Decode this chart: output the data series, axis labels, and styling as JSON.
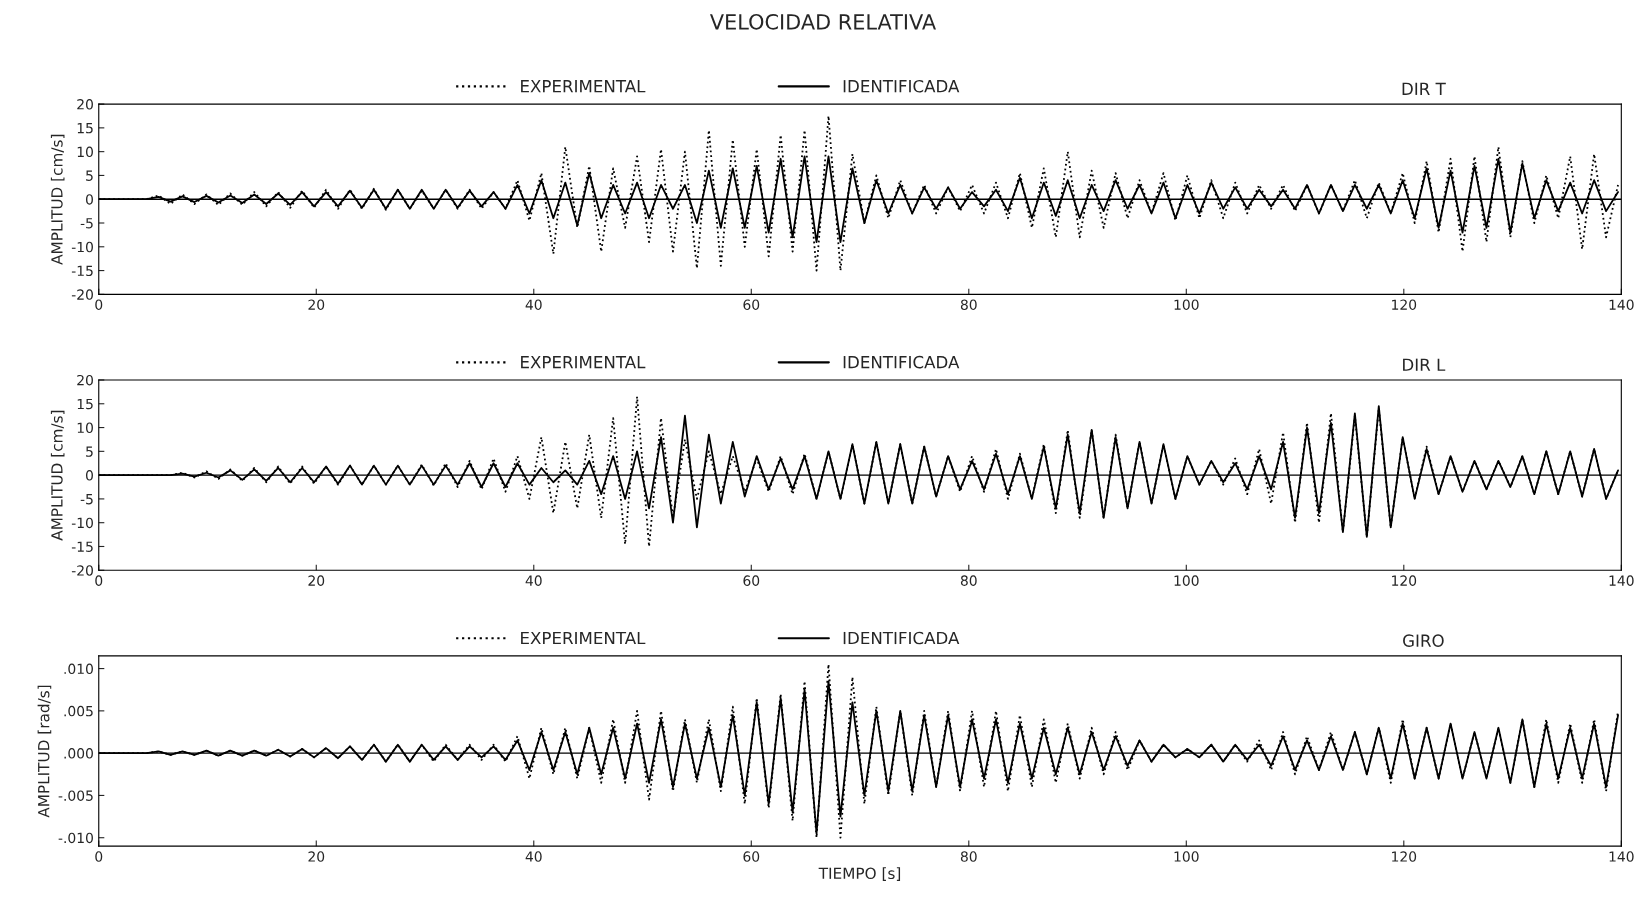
{
  "chart_data": [
    {
      "type": "line",
      "title": "VELOCIDAD RELATIVA",
      "subtitle": "DIR T",
      "ylabel": "AMPLITUD [cm/s]",
      "legend": "top",
      "xlim": [
        0,
        140
      ],
      "xticks": [
        0,
        20,
        40,
        60,
        80,
        100,
        120,
        140
      ],
      "ylim": [
        -20,
        20
      ],
      "yticks": [
        -20,
        -15,
        -10,
        -5,
        0,
        5,
        10,
        15,
        20
      ],
      "ref_lines": [
        {
          "axis": "y",
          "value": 0,
          "color": "#000000",
          "line_style": "solid"
        }
      ],
      "x": [
        0,
        1.1,
        2.2,
        3.3,
        4.4,
        5.5,
        6.6,
        7.7,
        8.8,
        9.9,
        11,
        12.1,
        13.2,
        14.3,
        15.4,
        16.5,
        17.6,
        18.7,
        19.8,
        20.9,
        22,
        23.1,
        24.2,
        25.3,
        26.4,
        27.5,
        28.6,
        29.7,
        30.8,
        31.9,
        33,
        34.1,
        35.2,
        36.3,
        37.4,
        38.5,
        39.6,
        40.7,
        41.8,
        42.9,
        44,
        45.1,
        46.2,
        47.3,
        48.4,
        49.5,
        50.6,
        51.7,
        52.8,
        53.9,
        55,
        56.1,
        57.2,
        58.3,
        59.4,
        60.5,
        61.6,
        62.7,
        63.8,
        64.9,
        66,
        67.1,
        68.2,
        69.3,
        70.4,
        71.5,
        72.6,
        73.7,
        74.8,
        75.9,
        77,
        78.1,
        79.2,
        80.3,
        81.4,
        82.5,
        83.6,
        84.7,
        85.8,
        86.9,
        88,
        89.1,
        90.2,
        91.3,
        92.4,
        93.5,
        94.6,
        95.7,
        96.8,
        97.9,
        99,
        100.1,
        101.2,
        102.3,
        103.4,
        104.5,
        105.6,
        106.7,
        107.8,
        108.9,
        110,
        111.1,
        112.2,
        113.3,
        114.4,
        115.5,
        116.6,
        117.7,
        118.8,
        119.9,
        121,
        122.1,
        123.2,
        124.3,
        125.4,
        126.5,
        127.6,
        128.7,
        129.8,
        130.9,
        132,
        133.1,
        134.2,
        135.3,
        136.4,
        137.5,
        138.6,
        139.7
      ],
      "series": [
        {
          "name": "EXPERIMENTAL",
          "color": "#000000",
          "line_style": "dotted",
          "values": [
            0,
            0,
            0,
            0,
            0,
            0.8,
            -1,
            1,
            -1,
            1,
            -1.2,
            1.2,
            -1.2,
            1.5,
            -1.5,
            1.5,
            -1.8,
            1.8,
            -1.8,
            2,
            -2,
            2,
            -2,
            2.2,
            -2.2,
            2,
            -2,
            1.8,
            -2,
            2,
            -2,
            2,
            -2,
            1.5,
            -2,
            4,
            -4.5,
            5.5,
            -11.5,
            11,
            -6,
            7,
            -11,
            6.5,
            -6,
            9,
            -9,
            10.5,
            -11,
            10,
            -14.5,
            14.5,
            -14,
            12.5,
            -10,
            10.5,
            -12,
            13.5,
            -11,
            14.5,
            -15,
            17.5,
            -15,
            9.5,
            -5,
            5,
            -4,
            4,
            -3,
            3,
            -3,
            2.5,
            -2.5,
            3,
            -3,
            3.5,
            -4,
            5.5,
            -6,
            6.5,
            -8,
            10,
            -8,
            6,
            -6,
            5.5,
            -4,
            4,
            -3,
            5.5,
            -4.5,
            5,
            -4,
            4,
            -4,
            3.5,
            -3,
            3,
            -2,
            3,
            -2.5,
            3,
            -3,
            3,
            -2.5,
            4,
            -4,
            3.5,
            -3,
            5.5,
            -5,
            8,
            -7,
            8.5,
            -11,
            9,
            -9,
            11,
            -8,
            8,
            -5,
            5,
            -4,
            9,
            -10.5,
            9.5,
            -8,
            3
          ]
        },
        {
          "name": "IDENTIFICADA",
          "color": "#000000",
          "line_style": "solid",
          "values": [
            0,
            0,
            0,
            0,
            0,
            0.5,
            -0.5,
            0.6,
            -0.6,
            0.7,
            -0.7,
            0.8,
            -0.8,
            1,
            -1,
            1.2,
            -1.2,
            1.5,
            -1.5,
            1.5,
            -1.5,
            1.8,
            -1.8,
            2,
            -2,
            2,
            -2,
            2,
            -2,
            2,
            -1.8,
            1.8,
            -1.5,
            1.5,
            -2,
            3,
            -3,
            4,
            -4,
            3.5,
            -5.5,
            5.5,
            -4,
            3,
            -3,
            3.5,
            -4,
            3,
            -2,
            3,
            -5,
            6,
            -6,
            6.5,
            -6,
            7,
            -7,
            8.5,
            -8,
            9,
            -9,
            9,
            -9,
            6.5,
            -5,
            4,
            -3,
            3,
            -3,
            2.5,
            -2,
            2.5,
            -2,
            1.5,
            -1.5,
            2,
            -2.5,
            4.5,
            -4,
            3.5,
            -3.5,
            4,
            -4,
            3,
            -2.5,
            4,
            -2,
            3,
            -3,
            3.5,
            -4,
            3,
            -3,
            3.5,
            -2,
            2.5,
            -2,
            2,
            -1.5,
            2,
            -2,
            3,
            -3,
            3,
            -2.5,
            3,
            -2,
            3,
            -3,
            4,
            -4,
            6.5,
            -6,
            6,
            -7,
            7,
            -6,
            8.5,
            -7,
            7.5,
            -4,
            4,
            -2.5,
            3.5,
            -3,
            4,
            -2.5,
            1.5
          ]
        }
      ]
    },
    {
      "type": "line",
      "subtitle": "DIR L",
      "ylabel": "AMPLITUD [cm/s]",
      "legend": "top",
      "xlim": [
        0,
        140
      ],
      "xticks": [
        0,
        20,
        40,
        60,
        80,
        100,
        120,
        140
      ],
      "ylim": [
        -20,
        20
      ],
      "yticks": [
        -20,
        -15,
        -10,
        -5,
        0,
        5,
        10,
        15,
        20
      ],
      "ref_lines": [
        {
          "axis": "y",
          "value": 0,
          "color": "#000000",
          "line_style": "solid"
        }
      ],
      "x": [
        0,
        1.1,
        2.2,
        3.3,
        4.4,
        5.5,
        6.6,
        7.7,
        8.8,
        9.9,
        11,
        12.1,
        13.2,
        14.3,
        15.4,
        16.5,
        17.6,
        18.7,
        19.8,
        20.9,
        22,
        23.1,
        24.2,
        25.3,
        26.4,
        27.5,
        28.6,
        29.7,
        30.8,
        31.9,
        33,
        34.1,
        35.2,
        36.3,
        37.4,
        38.5,
        39.6,
        40.7,
        41.8,
        42.9,
        44,
        45.1,
        46.2,
        47.3,
        48.4,
        49.5,
        50.6,
        51.7,
        52.8,
        53.9,
        55,
        56.1,
        57.2,
        58.3,
        59.4,
        60.5,
        61.6,
        62.7,
        63.8,
        64.9,
        66,
        67.1,
        68.2,
        69.3,
        70.4,
        71.5,
        72.6,
        73.7,
        74.8,
        75.9,
        77,
        78.1,
        79.2,
        80.3,
        81.4,
        82.5,
        83.6,
        84.7,
        85.8,
        86.9,
        88,
        89.1,
        90.2,
        91.3,
        92.4,
        93.5,
        94.6,
        95.7,
        96.8,
        97.9,
        99,
        100.1,
        101.2,
        102.3,
        103.4,
        104.5,
        105.6,
        106.7,
        107.8,
        108.9,
        110,
        111.1,
        112.2,
        113.3,
        114.4,
        115.5,
        116.6,
        117.7,
        118.8,
        119.9,
        121,
        122.1,
        123.2,
        124.3,
        125.4,
        126.5,
        127.6,
        128.7,
        129.8,
        130.9,
        132,
        133.1,
        134.2,
        135.3,
        136.4,
        137.5,
        138.6,
        139.7
      ],
      "series": [
        {
          "name": "EXPERIMENTAL",
          "color": "#000000",
          "line_style": "dotted",
          "values": [
            0,
            0,
            0,
            0,
            0,
            0,
            0,
            0.5,
            -0.5,
            0.8,
            -0.8,
            1.2,
            -1.2,
            1.5,
            -1.5,
            1.8,
            -1.8,
            1.8,
            -1.8,
            1.8,
            -2,
            2,
            -2,
            2,
            -2,
            2,
            -2,
            2.2,
            -2.2,
            2.5,
            -2.5,
            3,
            -3,
            3.5,
            -3.5,
            4,
            -5,
            8,
            -8,
            7,
            -7,
            8.5,
            -9,
            12,
            -14.5,
            16.5,
            -15,
            12,
            -9,
            7.5,
            -5,
            5,
            -4,
            4,
            -3.5,
            3.5,
            -3.5,
            4,
            -4,
            4.5,
            -5,
            5,
            -5,
            6.5,
            -6,
            7,
            -6,
            6.5,
            -6,
            6,
            -4.5,
            4,
            -3.5,
            4,
            -3.5,
            5.5,
            -5,
            4.5,
            -5,
            6.5,
            -8,
            9.5,
            -9,
            9.5,
            -9,
            8.5,
            -7,
            7,
            -6,
            6.5,
            -5,
            4,
            -2,
            3,
            -2,
            3.5,
            -4,
            5.5,
            -6,
            9,
            -10,
            11,
            -10,
            13,
            -12,
            12.5,
            -13,
            14,
            -11,
            8,
            -5,
            6,
            -4,
            4,
            -3.5,
            3,
            -3,
            3,
            -2.5,
            4,
            -4,
            5,
            -4,
            5,
            -4.5,
            5.5,
            -5,
            1
          ]
        },
        {
          "name": "IDENTIFICADA",
          "color": "#000000",
          "line_style": "solid",
          "values": [
            0,
            0,
            0,
            0,
            0,
            0,
            0,
            0.3,
            -0.3,
            0.5,
            -0.5,
            1,
            -1,
            1.2,
            -1.2,
            1.5,
            -1.5,
            1.5,
            -1.5,
            1.8,
            -1.8,
            2,
            -2,
            2,
            -2,
            2,
            -2,
            2,
            -2,
            2,
            -2,
            2.5,
            -2.5,
            2.5,
            -2.5,
            2.5,
            -2,
            1.5,
            -1.5,
            1,
            -2,
            3,
            -4,
            4,
            -5,
            5,
            -7,
            8,
            -10,
            12.5,
            -11,
            8.5,
            -6,
            7,
            -4.5,
            4,
            -3,
            3.5,
            -3,
            4,
            -5,
            5,
            -5,
            6.5,
            -6,
            7,
            -6,
            6.5,
            -6,
            6,
            -4.5,
            4,
            -3,
            3,
            -3,
            4.5,
            -4,
            4,
            -5,
            6,
            -7,
            8.5,
            -8,
            9.5,
            -9,
            8,
            -7,
            7,
            -6,
            6.5,
            -5,
            4,
            -2,
            3,
            -1.5,
            2.5,
            -3,
            4,
            -3,
            7,
            -9,
            10,
            -8,
            11,
            -12,
            13,
            -13,
            14.5,
            -11,
            8,
            -5,
            5.5,
            -4,
            4,
            -3.5,
            3,
            -3,
            3,
            -2.5,
            4,
            -4,
            5,
            -4,
            5,
            -4.5,
            5.5,
            -5,
            1
          ]
        }
      ]
    },
    {
      "type": "line",
      "subtitle": "GIRO",
      "xlabel": "TIEMPO [s]",
      "ylabel": "AMPLITUD [rad/s]",
      "legend": "top",
      "xlim": [
        0,
        140
      ],
      "xticks": [
        0,
        20,
        40,
        60,
        80,
        100,
        120,
        140
      ],
      "ylim": [
        -0.011,
        0.0115
      ],
      "yticks": [
        {
          "value": -0.01,
          "label": "-.010"
        },
        {
          "value": -0.005,
          "label": "-.005"
        },
        {
          "value": 0,
          "label": ".000"
        },
        {
          "value": 0.005,
          "label": ".005"
        },
        {
          "value": 0.01,
          "label": ".010"
        }
      ],
      "ref_lines": [
        {
          "axis": "y",
          "value": 0,
          "color": "#000000",
          "line_style": "solid"
        }
      ],
      "x": [
        0,
        1.1,
        2.2,
        3.3,
        4.4,
        5.5,
        6.6,
        7.7,
        8.8,
        9.9,
        11,
        12.1,
        13.2,
        14.3,
        15.4,
        16.5,
        17.6,
        18.7,
        19.8,
        20.9,
        22,
        23.1,
        24.2,
        25.3,
        26.4,
        27.5,
        28.6,
        29.7,
        30.8,
        31.9,
        33,
        34.1,
        35.2,
        36.3,
        37.4,
        38.5,
        39.6,
        40.7,
        41.8,
        42.9,
        44,
        45.1,
        46.2,
        47.3,
        48.4,
        49.5,
        50.6,
        51.7,
        52.8,
        53.9,
        55,
        56.1,
        57.2,
        58.3,
        59.4,
        60.5,
        61.6,
        62.7,
        63.8,
        64.9,
        66,
        67.1,
        68.2,
        69.3,
        70.4,
        71.5,
        72.6,
        73.7,
        74.8,
        75.9,
        77,
        78.1,
        79.2,
        80.3,
        81.4,
        82.5,
        83.6,
        84.7,
        85.8,
        86.9,
        88,
        89.1,
        90.2,
        91.3,
        92.4,
        93.5,
        94.6,
        95.7,
        96.8,
        97.9,
        99,
        100.1,
        101.2,
        102.3,
        103.4,
        104.5,
        105.6,
        106.7,
        107.8,
        108.9,
        110,
        111.1,
        112.2,
        113.3,
        114.4,
        115.5,
        116.6,
        117.7,
        118.8,
        119.9,
        121,
        122.1,
        123.2,
        124.3,
        125.4,
        126.5,
        127.6,
        128.7,
        129.8,
        130.9,
        132,
        133.1,
        134.2,
        135.3,
        136.4,
        137.5,
        138.6,
        139.7
      ],
      "series": [
        {
          "name": "EXPERIMENTAL",
          "color": "#000000",
          "line_style": "dotted",
          "values": [
            0,
            0,
            0,
            0,
            0,
            0.0002,
            -0.0002,
            0.0002,
            -0.0002,
            0.0003,
            -0.0003,
            0.0003,
            -0.0003,
            0.0003,
            -0.0003,
            0.0004,
            -0.0004,
            0.0005,
            -0.0005,
            0.0006,
            -0.0006,
            0.0008,
            -0.0008,
            0.001,
            -0.001,
            0.001,
            -0.001,
            0.001,
            -0.001,
            0.001,
            -0.0008,
            0.001,
            -0.0008,
            0.001,
            -0.001,
            0.002,
            -0.003,
            0.003,
            -0.0025,
            0.003,
            -0.003,
            0.003,
            -0.0035,
            0.004,
            -0.0035,
            0.005,
            -0.0055,
            0.005,
            -0.0045,
            0.004,
            -0.0035,
            0.004,
            -0.0045,
            0.0055,
            -0.006,
            0.0065,
            -0.0065,
            0.007,
            -0.008,
            0.0085,
            -0.01,
            0.0105,
            -0.01,
            0.009,
            -0.006,
            0.0055,
            -0.005,
            0.005,
            -0.005,
            0.005,
            -0.004,
            0.005,
            -0.0045,
            0.005,
            -0.004,
            0.005,
            -0.0045,
            0.0045,
            -0.004,
            0.004,
            -0.0035,
            0.0035,
            -0.003,
            0.003,
            -0.0025,
            0.0025,
            -0.002,
            0.0015,
            -0.001,
            0.001,
            -0.0005,
            0.0005,
            -0.0005,
            0.001,
            -0.001,
            0.001,
            -0.001,
            0.0015,
            -0.002,
            0.0025,
            -0.0025,
            0.002,
            -0.002,
            0.0025,
            -0.002,
            0.0025,
            -0.0025,
            0.003,
            -0.0035,
            0.004,
            -0.003,
            0.003,
            -0.003,
            0.0035,
            -0.003,
            0.0025,
            -0.003,
            0.003,
            -0.0035,
            0.004,
            -0.004,
            0.004,
            -0.0035,
            0.0035,
            -0.0035,
            0.004,
            -0.0045,
            0.005
          ]
        },
        {
          "name": "IDENTIFICADA",
          "color": "#000000",
          "line_style": "solid",
          "values": [
            0,
            0,
            0,
            0,
            0,
            0.0002,
            -0.0002,
            0.0002,
            -0.0002,
            0.0003,
            -0.0003,
            0.0003,
            -0.0003,
            0.0003,
            -0.0003,
            0.0004,
            -0.0004,
            0.0005,
            -0.0005,
            0.0006,
            -0.0006,
            0.0008,
            -0.0008,
            0.001,
            -0.001,
            0.001,
            -0.001,
            0.001,
            -0.0008,
            0.0008,
            -0.0008,
            0.0008,
            -0.0005,
            0.0008,
            -0.0008,
            0.0015,
            -0.002,
            0.0025,
            -0.002,
            0.0025,
            -0.0025,
            0.003,
            -0.0025,
            0.003,
            -0.003,
            0.0035,
            -0.0035,
            0.004,
            -0.004,
            0.0035,
            -0.003,
            0.003,
            -0.004,
            0.0045,
            -0.005,
            0.006,
            -0.006,
            0.0065,
            -0.007,
            0.0075,
            -0.0095,
            0.0085,
            -0.0075,
            0.006,
            -0.005,
            0.005,
            -0.0045,
            0.005,
            -0.0045,
            0.0045,
            -0.004,
            0.0045,
            -0.004,
            0.004,
            -0.003,
            0.004,
            -0.0035,
            0.0035,
            -0.003,
            0.003,
            -0.0025,
            0.003,
            -0.0025,
            0.0025,
            -0.002,
            0.002,
            -0.0015,
            0.0015,
            -0.001,
            0.001,
            -0.0005,
            0.0005,
            -0.0005,
            0.001,
            -0.001,
            0.001,
            -0.0008,
            0.001,
            -0.0015,
            0.002,
            -0.002,
            0.0015,
            -0.002,
            0.002,
            -0.002,
            0.0025,
            -0.0025,
            0.003,
            -0.003,
            0.0035,
            -0.003,
            0.003,
            -0.003,
            0.0035,
            -0.003,
            0.0025,
            -0.003,
            0.003,
            -0.0035,
            0.004,
            -0.004,
            0.0035,
            -0.003,
            0.003,
            -0.003,
            0.0035,
            -0.004,
            0.0045
          ]
        }
      ]
    }
  ]
}
